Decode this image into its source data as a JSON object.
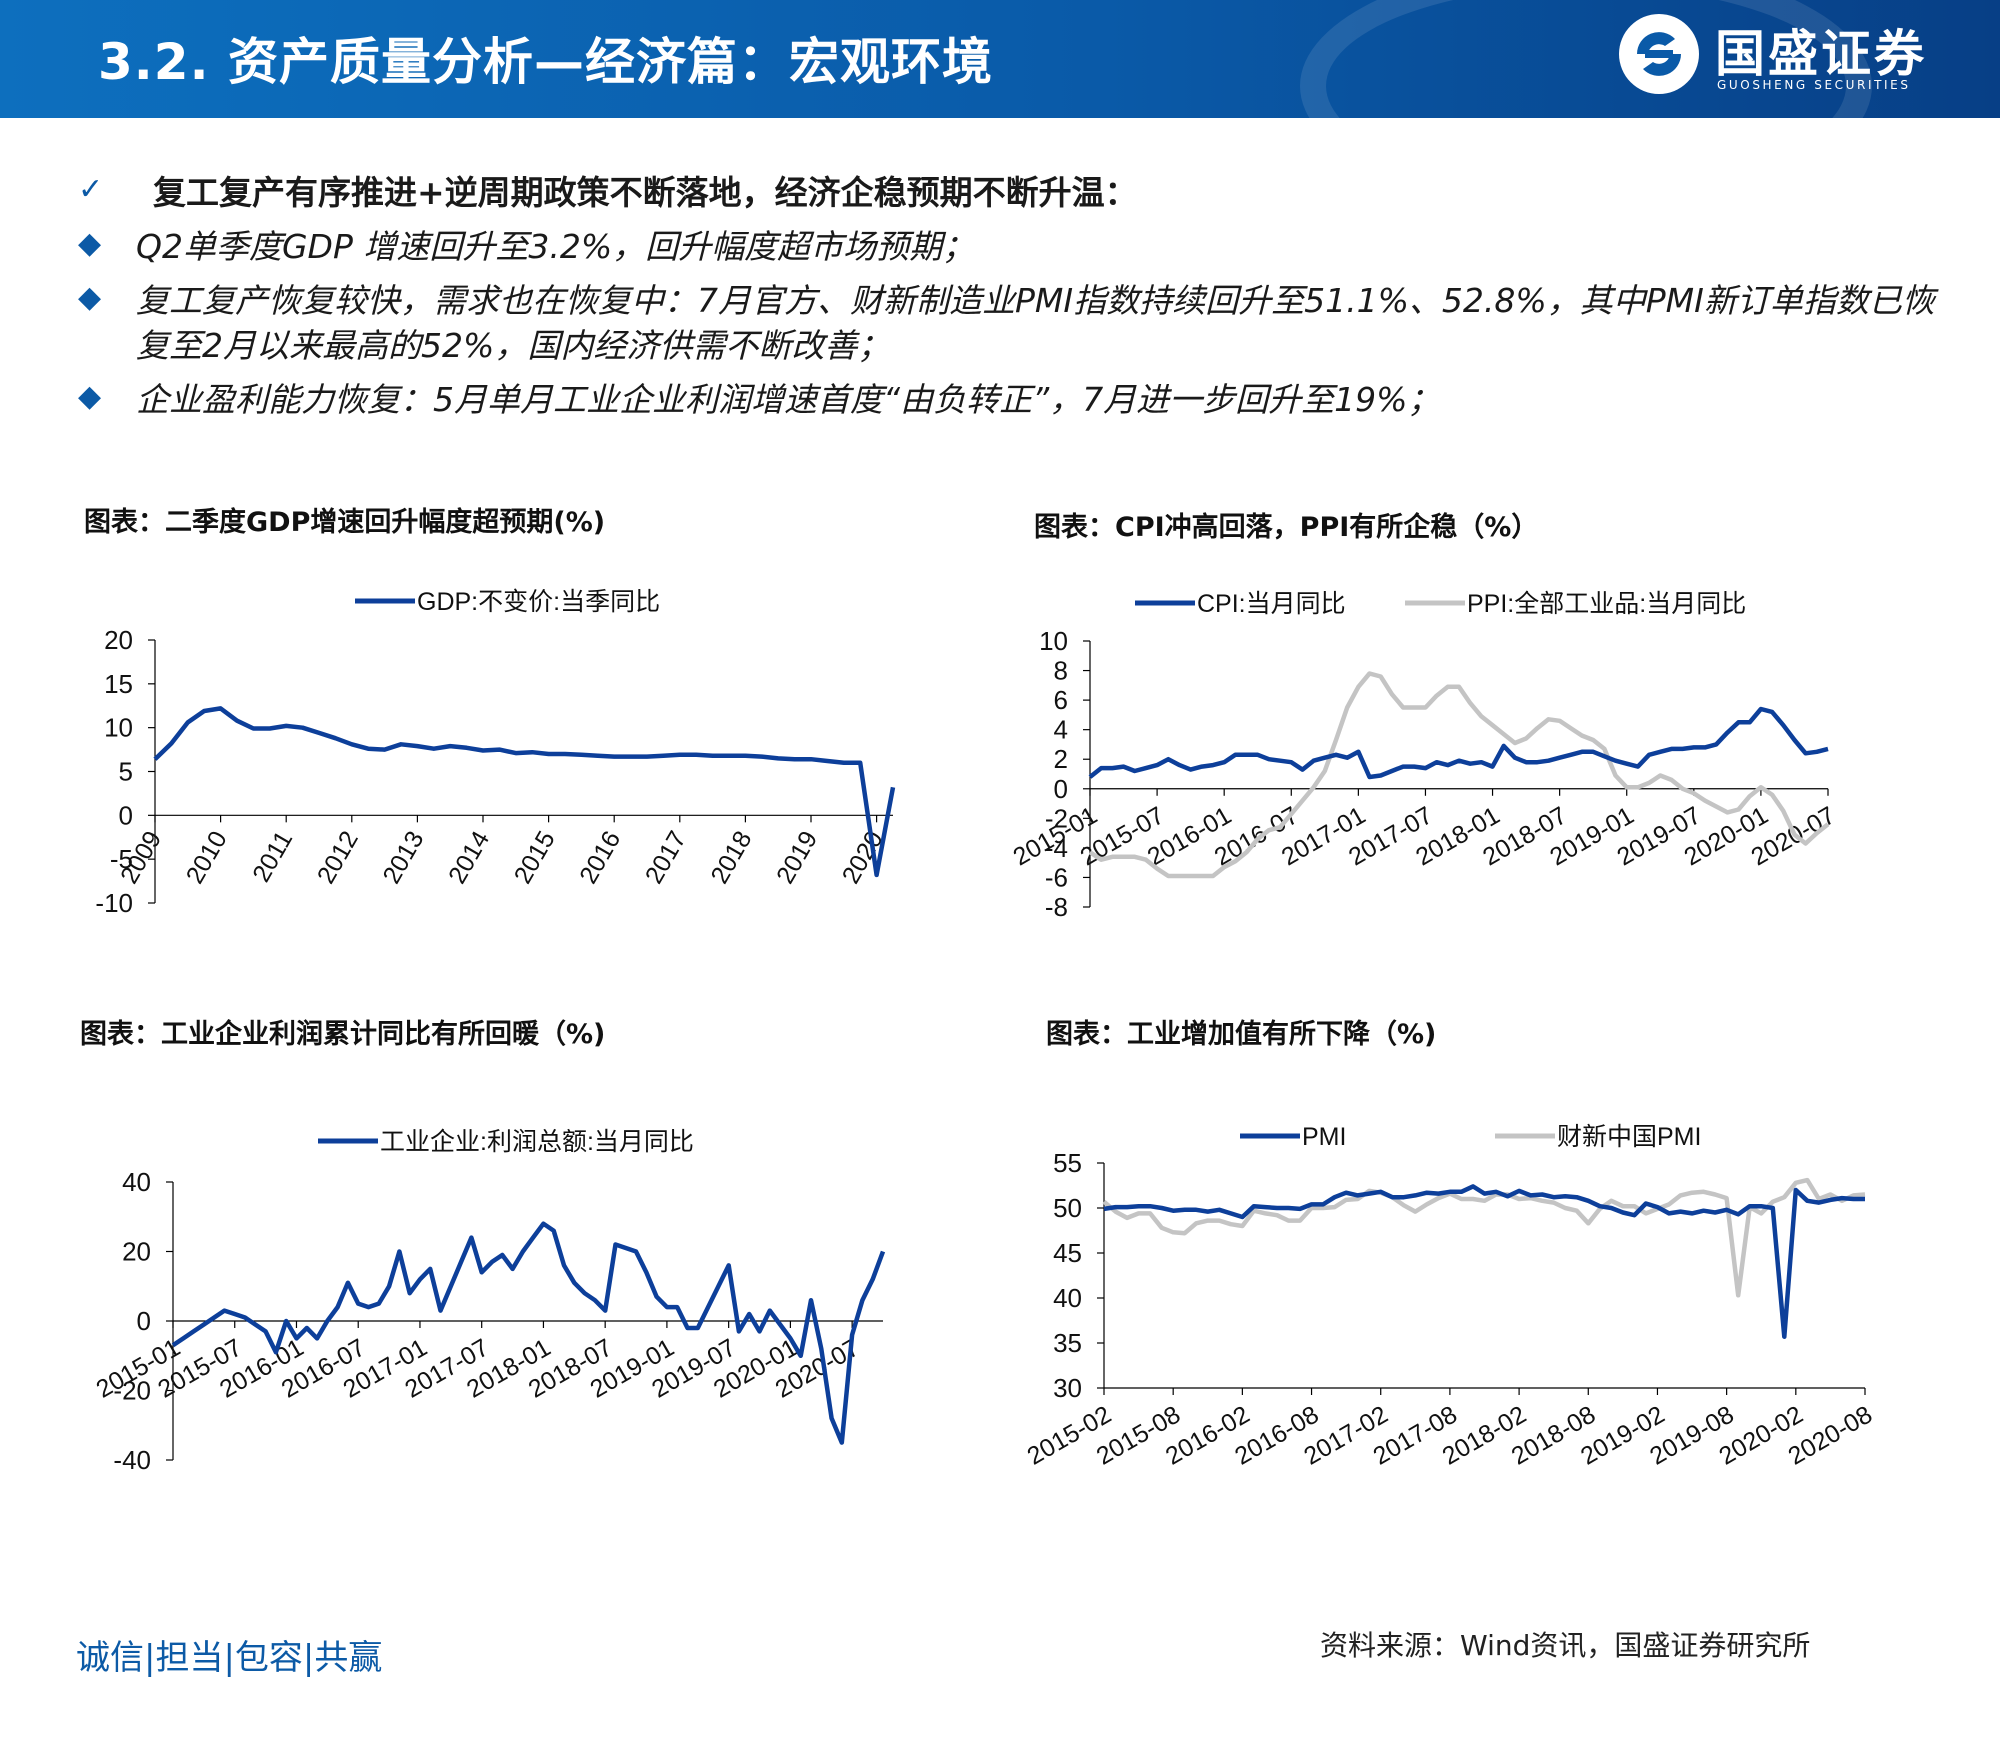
{
  "header": {
    "title": "3.2. 资产质量分析—经济篇：宏观环境"
  },
  "logo": {
    "name": "国盛证券",
    "subtitle": "GUOSHENG SECURITIES"
  },
  "bullets": [
    {
      "icon": "check-icon",
      "text": "复工复产有序推进+逆周期政策不断落地，经济企稳预期不断升温："
    },
    {
      "icon": "diamond-bullet-icon",
      "text": "Q2单季度GDP 增速回升至3.2%，回升幅度超市场预期；"
    },
    {
      "icon": "diamond-bullet-icon",
      "text": "复工复产恢复较快，需求也在恢复中：7月官方、财新制造业PMI指数持续回升至51.1%、52.8%，其中PMI新订单指数已恢复至2月以来最高的52%，国内经济供需不断改善；"
    },
    {
      "icon": "diamond-bullet-icon",
      "text": "企业盈利能力恢复：5月单月工业企业利润增速首度“由负转正”，7月进一步回升至19%；"
    }
  ],
  "colors": {
    "brand": "#0c5aa6",
    "series_primary": "#0d3f9a",
    "series_secondary": "#c4c4c4",
    "axis": "#000000"
  },
  "footer": {
    "slogan": "诚信|担当|包容|共赢",
    "source": "资料来源：Wind资讯，国盛证券研究所"
  },
  "chart_data": [
    {
      "type": "line",
      "title": "图表：二季度GDP增速回升幅度超预期(%)",
      "ylim": [
        -10,
        20
      ],
      "yticks": [
        -10,
        -5,
        0,
        5,
        10,
        15,
        20
      ],
      "x_tick_labels": [
        "2009",
        "2010",
        "2011",
        "2012",
        "2013",
        "2014",
        "2015",
        "2016",
        "2017",
        "2018",
        "2019",
        "2020"
      ],
      "x": [
        "2009Q1",
        "2009Q2",
        "2009Q3",
        "2009Q4",
        "2010Q1",
        "2010Q2",
        "2010Q3",
        "2010Q4",
        "2011Q1",
        "2011Q2",
        "2011Q3",
        "2011Q4",
        "2012Q1",
        "2012Q2",
        "2012Q3",
        "2012Q4",
        "2013Q1",
        "2013Q2",
        "2013Q3",
        "2013Q4",
        "2014Q1",
        "2014Q2",
        "2014Q3",
        "2014Q4",
        "2015Q1",
        "2015Q2",
        "2015Q3",
        "2015Q4",
        "2016Q1",
        "2016Q2",
        "2016Q3",
        "2016Q4",
        "2017Q1",
        "2017Q2",
        "2017Q3",
        "2017Q4",
        "2018Q1",
        "2018Q2",
        "2018Q3",
        "2018Q4",
        "2019Q1",
        "2019Q2",
        "2019Q3",
        "2019Q4",
        "2020Q1",
        "2020Q2"
      ],
      "legend": "top-center",
      "series": [
        {
          "name": "GDP:不变价:当季同比",
          "color": "#0d3f9a",
          "style": "solid",
          "values": [
            6.4,
            8.2,
            10.6,
            11.9,
            12.2,
            10.8,
            9.9,
            9.9,
            10.2,
            10.0,
            9.4,
            8.8,
            8.1,
            7.6,
            7.5,
            8.1,
            7.9,
            7.6,
            7.9,
            7.7,
            7.4,
            7.5,
            7.1,
            7.2,
            7.0,
            7.0,
            6.9,
            6.8,
            6.7,
            6.7,
            6.7,
            6.8,
            6.9,
            6.9,
            6.8,
            6.8,
            6.8,
            6.7,
            6.5,
            6.4,
            6.4,
            6.2,
            6.0,
            6.0,
            -6.8,
            3.2
          ]
        }
      ]
    },
    {
      "type": "line",
      "title": "图表：CPI冲高回落，PPI有所企稳（%）",
      "ylim": [
        -8,
        10
      ],
      "yticks": [
        -8,
        -6,
        -4,
        -2,
        0,
        2,
        4,
        6,
        8,
        10
      ],
      "x_start": "2015-01",
      "x_tick_labels": [
        "2015-01",
        "2015-07",
        "2016-01",
        "2016-07",
        "2017-01",
        "2017-07",
        "2018-01",
        "2018-07",
        "2019-01",
        "2019-07",
        "2020-01",
        "2020-07"
      ],
      "legend": "top-center",
      "series": [
        {
          "name": "CPI:当月同比",
          "color": "#0d3f9a",
          "style": "solid",
          "values": [
            0.8,
            1.4,
            1.4,
            1.5,
            1.2,
            1.4,
            1.6,
            2.0,
            1.6,
            1.3,
            1.5,
            1.6,
            1.8,
            2.3,
            2.3,
            2.3,
            2.0,
            1.9,
            1.8,
            1.3,
            1.9,
            2.1,
            2.3,
            2.1,
            2.5,
            0.8,
            0.9,
            1.2,
            1.5,
            1.5,
            1.4,
            1.8,
            1.6,
            1.9,
            1.7,
            1.8,
            1.5,
            2.9,
            2.1,
            1.8,
            1.8,
            1.9,
            2.1,
            2.3,
            2.5,
            2.5,
            2.2,
            1.9,
            1.7,
            1.5,
            2.3,
            2.5,
            2.7,
            2.7,
            2.8,
            2.8,
            3.0,
            3.8,
            4.5,
            4.5,
            5.4,
            5.2,
            4.3,
            3.3,
            2.4,
            2.5,
            2.7
          ]
        },
        {
          "name": "PPI:全部工业品:当月同比",
          "color": "#c4c4c4",
          "style": "solid",
          "values": [
            -4.3,
            -4.8,
            -4.6,
            -4.6,
            -4.6,
            -4.8,
            -5.4,
            -5.9,
            -5.9,
            -5.9,
            -5.9,
            -5.9,
            -5.3,
            -4.9,
            -4.3,
            -3.4,
            -2.8,
            -2.6,
            -1.7,
            -0.8,
            0.1,
            1.2,
            3.3,
            5.5,
            6.9,
            7.8,
            7.6,
            6.4,
            5.5,
            5.5,
            5.5,
            6.3,
            6.9,
            6.9,
            5.8,
            4.9,
            4.3,
            3.7,
            3.1,
            3.4,
            4.1,
            4.7,
            4.6,
            4.1,
            3.6,
            3.3,
            2.7,
            0.9,
            0.1,
            0.1,
            0.4,
            0.9,
            0.6,
            0.0,
            -0.3,
            -0.8,
            -1.2,
            -1.6,
            -1.4,
            -0.5,
            0.1,
            -0.4,
            -1.5,
            -3.1,
            -3.7,
            -3.0,
            -2.4
          ]
        }
      ]
    },
    {
      "type": "line",
      "title": "图表：工业企业利润累计同比有所回暖（%)",
      "ylim": [
        -40,
        40
      ],
      "yticks": [
        -40,
        -20,
        0,
        20,
        40
      ],
      "x_start": "2015-01",
      "x_tick_labels": [
        "2015-01",
        "2015-07",
        "2016-01",
        "2016-07",
        "2017-01",
        "2017-07",
        "2018-01",
        "2018-07",
        "2019-01",
        "2019-07",
        "2020-01",
        "2020-07"
      ],
      "legend": "top-center",
      "series": [
        {
          "name": "工业企业:利润总额:当月同比",
          "color": "#0d3f9a",
          "style": "solid",
          "values": [
            -7,
            -5,
            -3,
            -1,
            1,
            3,
            2,
            1,
            -1,
            -3,
            -9,
            0,
            -5,
            -2,
            -5,
            0,
            4,
            11,
            5,
            4,
            5,
            10,
            20,
            8,
            12,
            15,
            3,
            10,
            17,
            24,
            14,
            17,
            19,
            15,
            20,
            24,
            28,
            26,
            16,
            11,
            8,
            6,
            3,
            22,
            21,
            20,
            14,
            7,
            4,
            4,
            -2,
            -2,
            4,
            10,
            16,
            -3,
            2,
            -3,
            3,
            -1,
            -5,
            -10,
            6,
            -8,
            -28,
            -35,
            -4,
            6,
            12,
            20
          ]
        }
      ]
    },
    {
      "type": "line",
      "title": "图表：工业增加值有所下降（%)",
      "ylim": [
        30,
        55
      ],
      "yticks": [
        30,
        35,
        40,
        45,
        50,
        55
      ],
      "x_start": "2015-02",
      "x_tick_labels": [
        "2015-02",
        "2015-08",
        "2016-02",
        "2016-08",
        "2017-02",
        "2017-08",
        "2018-02",
        "2018-08",
        "2019-02",
        "2019-08",
        "2020-02",
        "2020-08"
      ],
      "legend": "top-center",
      "series": [
        {
          "name": "PMI",
          "color": "#0d3f9a",
          "style": "solid",
          "values": [
            49.9,
            50.1,
            50.1,
            50.2,
            50.2,
            50.0,
            49.7,
            49.8,
            49.8,
            49.6,
            49.8,
            49.4,
            49.0,
            50.2,
            50.1,
            50.0,
            50.0,
            49.9,
            50.4,
            50.4,
            51.2,
            51.7,
            51.4,
            51.6,
            51.8,
            51.2,
            51.2,
            51.4,
            51.7,
            51.6,
            51.8,
            51.8,
            52.4,
            51.6,
            51.8,
            51.3,
            51.9,
            51.4,
            51.5,
            51.2,
            51.3,
            51.2,
            50.8,
            50.2,
            50.0,
            49.5,
            49.2,
            50.5,
            50.1,
            49.4,
            49.6,
            49.4,
            49.7,
            49.5,
            49.8,
            49.3,
            50.2,
            50.2,
            50.0,
            35.7,
            52.0,
            50.8,
            50.6,
            50.9,
            51.1,
            51.0,
            51.0
          ]
        },
        {
          "name": "财新中国PMI",
          "color": "#c4c4c4",
          "style": "solid",
          "values": [
            50.7,
            49.6,
            48.9,
            49.4,
            49.4,
            47.8,
            47.3,
            47.2,
            48.3,
            48.6,
            48.6,
            48.2,
            48.0,
            49.7,
            49.4,
            49.2,
            48.6,
            48.6,
            50.0,
            50.0,
            50.1,
            50.9,
            51.0,
            51.9,
            51.7,
            51.2,
            50.3,
            49.6,
            50.4,
            51.1,
            51.6,
            51.0,
            51.0,
            50.8,
            51.5,
            51.5,
            51.0,
            51.1,
            50.8,
            50.6,
            50.0,
            49.7,
            48.3,
            49.9,
            50.8,
            50.2,
            50.2,
            49.4,
            49.9,
            50.4,
            51.4,
            51.7,
            51.8,
            51.5,
            51.1,
            40.3,
            50.1,
            49.4,
            50.7,
            51.2,
            52.8,
            53.1,
            51.0,
            51.5,
            50.8,
            51.4,
            51.5
          ]
        }
      ]
    }
  ]
}
